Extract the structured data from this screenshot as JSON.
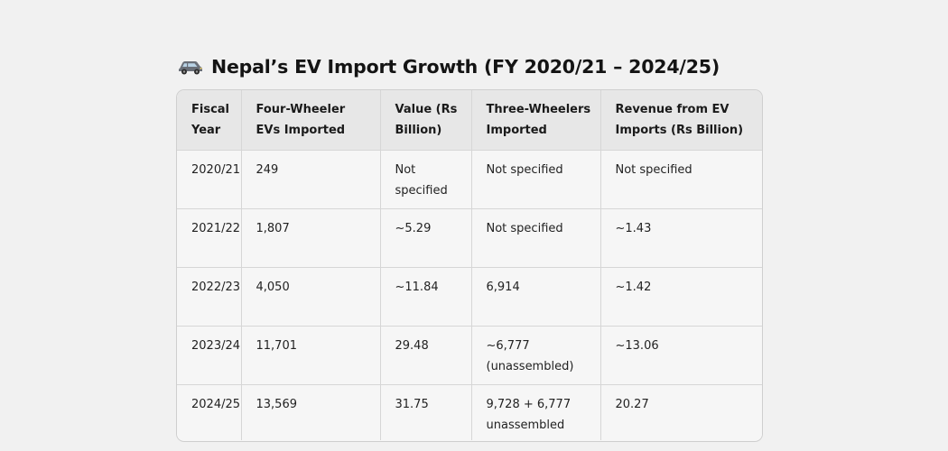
{
  "page": {
    "title": "Nepal’s EV Import Growth (FY 2020/21 – 2024/25)",
    "icon": "car-icon"
  },
  "table": {
    "headers": [
      "Fiscal Year",
      "Four-Wheeler EVs Imported",
      "Value (Rs Billion)",
      "Three-Wheelers Imported",
      "Revenue from EV Imports (Rs Billion)"
    ],
    "rows": [
      [
        "2020/21",
        "249",
        "Not specified",
        "Not specified",
        "Not specified"
      ],
      [
        "2021/22",
        "1,807",
        "~5.29",
        "Not specified",
        "~1.43"
      ],
      [
        "2022/23",
        "4,050",
        "~11.84",
        "6,914",
        "~1.42"
      ],
      [
        "2023/24",
        "11,701",
        "29.48",
        "~6,777 (unassembled)",
        "~13.06"
      ],
      [
        "2024/25",
        "13,569",
        "31.75",
        "9,728 + 6,777 unassembled",
        "20.27"
      ]
    ]
  },
  "colors": {
    "background": "#f1f1f1",
    "header_bg": "#e7e7e7",
    "cell_bg": "#f6f6f6",
    "border": "#d6d6d6",
    "car_body": "#6a6f78"
  }
}
